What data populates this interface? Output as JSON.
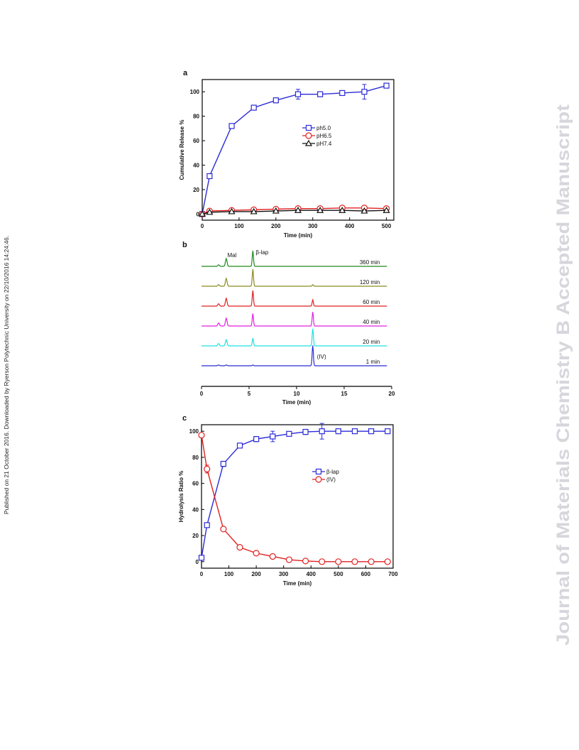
{
  "side_note": "Published on 21 October 2016. Downloaded by Ryerson Polytechnic University on 22/10/2016 14:24:46.",
  "watermark": "Journal of Materials Chemistry B Accepted Manuscript",
  "colors": {
    "blue": "#2b2bd6",
    "red": "#e02020",
    "black": "#111111",
    "watermark": "#d6d6dc"
  },
  "panels": [
    {
      "letter": "a",
      "chart_data": {
        "type": "line",
        "xlabel": "Time (min)",
        "ylabel": "Cumulative Release %",
        "xlim": [
          0,
          520
        ],
        "ylim": [
          -5,
          110
        ],
        "x_ticks": [
          0,
          100,
          200,
          300,
          400,
          500
        ],
        "y_ticks": [
          0,
          20,
          40,
          60,
          80,
          100
        ],
        "legend_position": "right",
        "series": [
          {
            "name": "ph5.0",
            "marker": "square",
            "color": "#2b2bd6",
            "x": [
              0,
              20,
              80,
              140,
              200,
              260,
              320,
              380,
              440,
              500
            ],
            "y": [
              0,
              31,
              72,
              87,
              93,
              98,
              98,
              99,
              100,
              105
            ],
            "err": [
              0,
              1.5,
              2,
              1.5,
              2,
              4,
              2,
              2,
              6,
              1.5
            ]
          },
          {
            "name": "pH6.5",
            "marker": "circle",
            "color": "#e02020",
            "x": [
              0,
              20,
              80,
              140,
              200,
              260,
              320,
              380,
              440,
              500
            ],
            "y": [
              0,
              2.5,
              3,
              3.5,
              4,
              4.5,
              4.5,
              5,
              5,
              4.5
            ],
            "err": [
              0,
              0.5,
              0.5,
              0.5,
              0.5,
              0.5,
              0.5,
              0.5,
              0.5,
              0.5
            ]
          },
          {
            "name": "pH7.4",
            "marker": "triangle",
            "color": "#111111",
            "x": [
              0,
              20,
              80,
              140,
              200,
              260,
              320,
              380,
              440,
              500
            ],
            "y": [
              0,
              1.5,
              2,
              2,
              2.5,
              3,
              3,
              3,
              2.5,
              3
            ],
            "err": [
              0,
              0.5,
              0.5,
              0.5,
              0.5,
              0.5,
              0.5,
              0.5,
              1,
              0.5
            ]
          }
        ]
      }
    },
    {
      "letter": "b",
      "chart_data": {
        "type": "line",
        "xlabel": "Time (min)",
        "xlim": [
          0,
          20
        ],
        "x_ticks": [
          0,
          5,
          10,
          15,
          20
        ],
        "peak_labels": [
          {
            "text": "Mal",
            "x": 2.5
          },
          {
            "text": "β-lap",
            "x": 5.4
          },
          {
            "text": "(IV)",
            "x": 11.7
          }
        ],
        "traces": [
          {
            "label": "360 min",
            "color": "#1f8a1f",
            "peaks": [
              [
                1.8,
                0.1
              ],
              [
                2.6,
                0.5
              ],
              [
                5.4,
                1.0
              ],
              [
                11.7,
                0.0
              ]
            ]
          },
          {
            "label": "120 min",
            "color": "#8b8a1f",
            "peaks": [
              [
                1.8,
                0.1
              ],
              [
                2.6,
                0.5
              ],
              [
                5.4,
                1.1
              ],
              [
                11.7,
                0.1
              ]
            ]
          },
          {
            "label": "60 min",
            "color": "#e02020",
            "peaks": [
              [
                1.8,
                0.15
              ],
              [
                2.6,
                0.5
              ],
              [
                5.4,
                1.0
              ],
              [
                11.7,
                0.4
              ]
            ]
          },
          {
            "label": "40 min",
            "color": "#e020e0",
            "peaks": [
              [
                1.8,
                0.2
              ],
              [
                2.6,
                0.5
              ],
              [
                5.4,
                0.8
              ],
              [
                11.7,
                0.9
              ]
            ]
          },
          {
            "label": "20 min",
            "color": "#20e0e0",
            "peaks": [
              [
                1.8,
                0.15
              ],
              [
                2.6,
                0.4
              ],
              [
                5.4,
                0.5
              ],
              [
                11.7,
                1.1
              ]
            ]
          },
          {
            "label": "1 min",
            "color": "#2b2bd6",
            "peaks": [
              [
                1.8,
                0.05
              ],
              [
                2.6,
                0.05
              ],
              [
                5.4,
                0.05
              ],
              [
                11.7,
                1.3
              ]
            ]
          }
        ]
      }
    },
    {
      "letter": "c",
      "chart_data": {
        "type": "line",
        "xlabel": "Time (min)",
        "ylabel": "Hydrolysis Ratio %",
        "xlim": [
          0,
          700
        ],
        "ylim": [
          -5,
          105
        ],
        "x_ticks": [
          0,
          100,
          200,
          300,
          400,
          500,
          600,
          700
        ],
        "y_ticks": [
          0,
          20,
          40,
          60,
          80,
          100
        ],
        "legend_position": "right",
        "series": [
          {
            "name": "β-lap",
            "marker": "square",
            "color": "#2b2bd6",
            "x": [
              0,
              20,
              80,
              140,
              200,
              260,
              320,
              380,
              440,
              500,
              560,
              620,
              680
            ],
            "y": [
              3,
              28,
              75,
              89,
              94,
              96,
              98,
              99.5,
              100,
              100,
              100,
              100,
              100
            ],
            "err": [
              0,
              1.5,
              2,
              1,
              2,
              4,
              1.5,
              2,
              6,
              1,
              1,
              1,
              1.5
            ]
          },
          {
            "name": "(IV)",
            "marker": "circle",
            "color": "#e02020",
            "x": [
              0,
              20,
              80,
              140,
              200,
              260,
              320,
              380,
              440,
              500,
              560,
              620,
              680
            ],
            "y": [
              97,
              71,
              25,
              11,
              6.5,
              4,
              1.5,
              0.5,
              0,
              0,
              0,
              0,
              0
            ],
            "err": [
              0,
              3,
              1,
              0.5,
              0.5,
              0.5,
              1,
              1,
              0,
              0,
              0,
              0,
              0
            ]
          }
        ]
      }
    }
  ]
}
